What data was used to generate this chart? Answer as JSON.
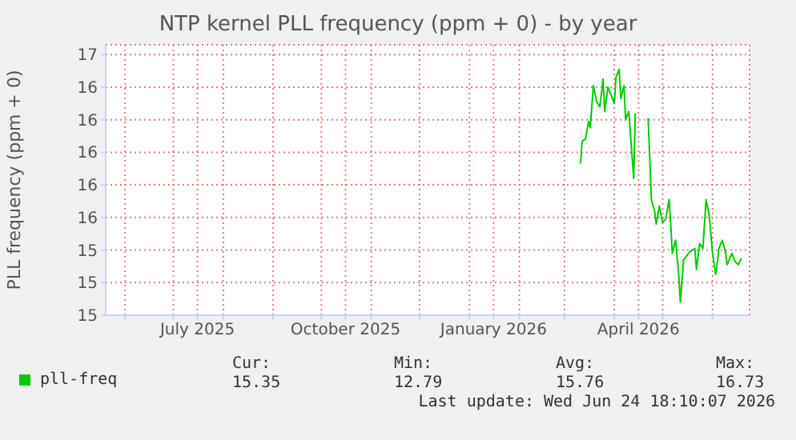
{
  "chart_data": {
    "type": "line",
    "title": "NTP kernel PLL frequency (ppm + 0) - by year",
    "ylabel": "PLL frequency (ppm + 0)",
    "xlim": [
      "2025-05-20",
      "2026-06-24"
    ],
    "xticks": [
      {
        "value": "2025-06-01",
        "label": null
      },
      {
        "value": "2025-07-01",
        "label": null
      },
      {
        "value": "2025-07-16",
        "label": "July 2025"
      },
      {
        "value": "2025-08-01",
        "label": null
      },
      {
        "value": "2025-09-01",
        "label": null
      },
      {
        "value": "2025-10-01",
        "label": null
      },
      {
        "value": "2025-10-16",
        "label": "October 2025"
      },
      {
        "value": "2025-11-01",
        "label": null
      },
      {
        "value": "2025-12-01",
        "label": null
      },
      {
        "value": "2026-01-01",
        "label": null
      },
      {
        "value": "2026-01-16",
        "label": "January 2026"
      },
      {
        "value": "2026-02-01",
        "label": null
      },
      {
        "value": "2026-03-01",
        "label": null
      },
      {
        "value": "2026-04-01",
        "label": null
      },
      {
        "value": "2026-04-16",
        "label": "April 2026"
      },
      {
        "value": "2026-05-01",
        "label": null
      },
      {
        "value": "2026-06-01",
        "label": null
      }
    ],
    "ylim": [
      14.9,
      16.56
    ],
    "yticks": [
      {
        "value": 14.9,
        "label": "15"
      },
      {
        "value": 15.1,
        "label": "15"
      },
      {
        "value": 15.3,
        "label": "15"
      },
      {
        "value": 15.5,
        "label": "16"
      },
      {
        "value": 15.7,
        "label": "16"
      },
      {
        "value": 15.9,
        "label": "16"
      },
      {
        "value": 16.1,
        "label": "16"
      },
      {
        "value": 16.3,
        "label": "16"
      },
      {
        "value": 16.5,
        "label": "17"
      }
    ],
    "grid": true,
    "legend": "bottom",
    "x": [
      "2026-03-11",
      "2026-03-12",
      "2026-03-14",
      "2026-03-16",
      "2026-03-17",
      "2026-03-19",
      "2026-03-21",
      "2026-03-23",
      "2026-03-25",
      "2026-03-26",
      "2026-03-28",
      "2026-03-30",
      "2026-04-01",
      "2026-04-02",
      "2026-04-04",
      "2026-04-05",
      "2026-04-07",
      "2026-04-08",
      "2026-04-10",
      "2026-04-13",
      "2026-04-14",
      "2026-04-18",
      "2026-04-22",
      "2026-04-24",
      "2026-04-26",
      "2026-04-27",
      "2026-04-29",
      "2026-05-01",
      "2026-05-03",
      "2026-05-05",
      "2026-05-06",
      "2026-05-07",
      "2026-05-09",
      "2026-05-11",
      "2026-05-12",
      "2026-05-14",
      "2026-05-18",
      "2026-05-21",
      "2026-05-22",
      "2026-05-24",
      "2026-05-26",
      "2026-05-28",
      "2026-05-30",
      "2026-06-01",
      "2026-06-03",
      "2026-06-05",
      "2026-06-07",
      "2026-06-09",
      "2026-06-10",
      "2026-06-13",
      "2026-06-15",
      "2026-06-17",
      "2026-06-19"
    ],
    "series": [
      {
        "name": "pll-freq",
        "color": "#00cc00",
        "values": [
          15.83,
          15.97,
          15.98,
          16.09,
          16.05,
          16.31,
          16.21,
          16.18,
          16.35,
          16.15,
          16.3,
          16.25,
          16.2,
          16.36,
          16.41,
          16.23,
          16.31,
          16.1,
          16.15,
          15.74,
          16.14,
          null,
          16.11,
          15.61,
          15.54,
          15.46,
          15.57,
          15.47,
          15.49,
          15.61,
          15.46,
          15.28,
          15.36,
          15.15,
          14.98,
          15.24,
          15.29,
          15.31,
          15.18,
          15.34,
          15.31,
          15.61,
          15.51,
          15.28,
          15.15,
          15.31,
          15.36,
          15.29,
          15.21,
          15.28,
          15.23,
          15.21,
          15.25
        ]
      }
    ],
    "annotations": [
      "Cur:",
      "Min:",
      "Avg:",
      "Max:",
      "15.35",
      "12.79",
      "15.76",
      "16.73",
      "Last update: Wed Jun 24 18:10:07 2026"
    ]
  }
}
